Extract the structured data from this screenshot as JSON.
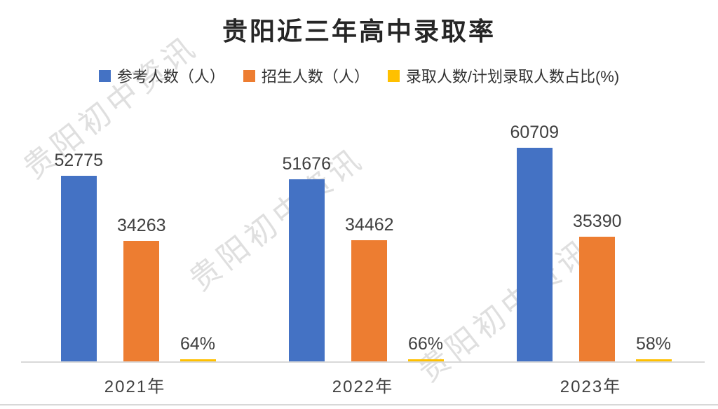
{
  "watermark": {
    "text": "贵阳初中资讯"
  },
  "chart_data": {
    "type": "bar",
    "title": "贵阳近三年高中录取率",
    "categories": [
      "2021年",
      "2022年",
      "2023年"
    ],
    "ylim": [
      0,
      75000
    ],
    "grid": false,
    "legend_position": "top",
    "background": "#ffffff",
    "axis_line_color": "#d9d9d9",
    "label_color": "#404040",
    "series": [
      {
        "id": "candidates",
        "name": "参考人数（人）",
        "color": "#4472C4",
        "values": [
          52775,
          51676,
          60709
        ],
        "labels": [
          "52775",
          "51676",
          "60709"
        ]
      },
      {
        "id": "enrollment",
        "name": "招生人数（人）",
        "color": "#ED7D31",
        "values": [
          34263,
          34462,
          35390
        ],
        "labels": [
          "34263",
          "34462",
          "35390"
        ]
      },
      {
        "id": "admission-ratio",
        "name": "录取人数/计划录取人数占比(%)",
        "color": "#FFC000",
        "values": [
          64,
          66,
          58
        ],
        "labels": [
          "64%",
          "66%",
          "58%"
        ]
      }
    ]
  }
}
